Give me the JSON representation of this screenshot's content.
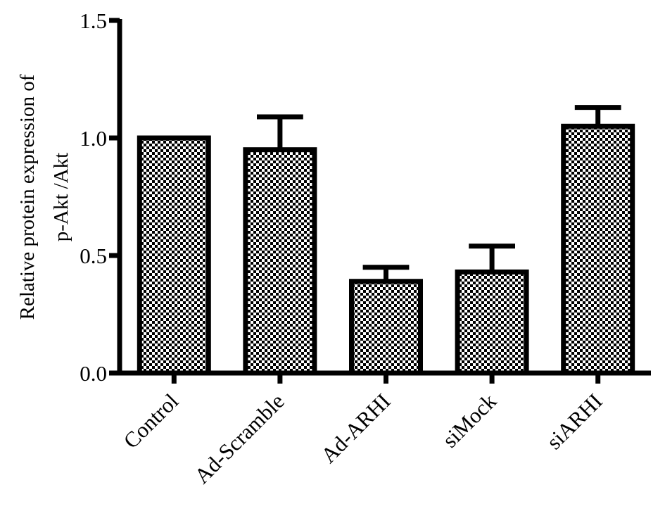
{
  "chart_data": {
    "type": "bar",
    "title": "",
    "ylabel_lines": [
      "Relative protein expression of",
      "p-Akt /Akt"
    ],
    "xlabel": "",
    "categories": [
      "Control",
      "Ad-Scramble",
      "Ad-ARHI",
      "siMock",
      "siARHI"
    ],
    "values": [
      1.0,
      0.95,
      0.39,
      0.43,
      1.05
    ],
    "errors": [
      0.0,
      0.14,
      0.06,
      0.11,
      0.08
    ],
    "ylim": [
      0,
      1.5
    ],
    "yticks": [
      0.0,
      0.5,
      1.0,
      1.5
    ],
    "ytick_labels": [
      "0.0",
      "0.5",
      "1.0",
      "1.5"
    ],
    "grid": false,
    "bar_fill": "checkerboard",
    "colors": {
      "bar_edge": "#000000",
      "pattern_dark": "#000000",
      "pattern_light": "#ffffff"
    }
  }
}
